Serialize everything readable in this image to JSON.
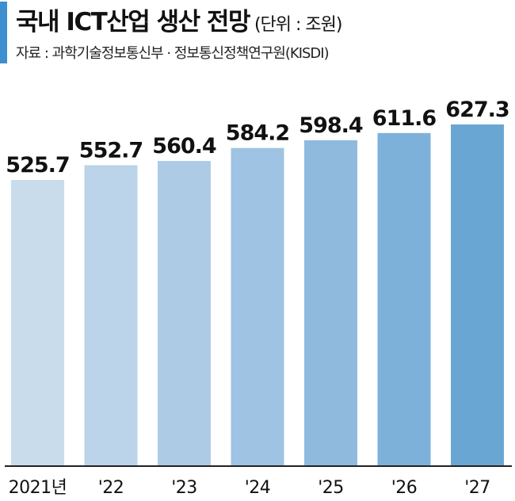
{
  "header": {
    "title": "국내 ICT산업 생산 전망",
    "unit": "(단위 : 조원)",
    "source": "자료 : 과학기술정보통신부 · 정보통신정책연구원(KISDI)"
  },
  "colors": {
    "accent": "#3e8fd0",
    "bars": [
      "#c9dcec",
      "#bcd4ea",
      "#aecbe6",
      "#9fc3e2",
      "#8fbadd",
      "#7eb1d9",
      "#6aa6d3"
    ],
    "axis": "#222222"
  },
  "chart_data": {
    "type": "bar",
    "categories": [
      "2021년",
      "'22",
      "'23",
      "'24",
      "'25",
      "'26",
      "'27"
    ],
    "values": [
      525.7,
      552.7,
      560.4,
      584.2,
      598.4,
      611.6,
      627.3
    ],
    "value_labels": [
      "525.7",
      "552.7",
      "560.4",
      "584.2",
      "598.4",
      "611.6",
      "627.3"
    ],
    "title": "국내 ICT산업 생산 전망",
    "unit": "조원",
    "grid": false,
    "legend": "none"
  }
}
